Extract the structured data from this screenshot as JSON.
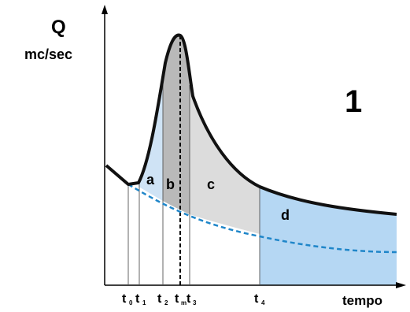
{
  "y_axis": {
    "title": "Q",
    "unit": "mc/sec"
  },
  "x_axis": {
    "title": "tempo"
  },
  "figure_number": "1",
  "areas": [
    {
      "id": "a",
      "label": "a",
      "color": "#cfe3f5"
    },
    {
      "id": "b",
      "label": "b",
      "color": "#b9b9b9"
    },
    {
      "id": "c",
      "label": "c",
      "color": "#dcdcdc"
    },
    {
      "id": "d",
      "label": "d",
      "color": "#b5d7f3"
    }
  ],
  "time_marks": [
    {
      "id": "t0",
      "main": "t",
      "sub": "0"
    },
    {
      "id": "t1",
      "main": "t",
      "sub": "1"
    },
    {
      "id": "t2",
      "main": "t",
      "sub": "2"
    },
    {
      "id": "tm",
      "main": "t",
      "sub": "m"
    },
    {
      "id": "t3",
      "main": "t",
      "sub": "3"
    },
    {
      "id": "t4",
      "main": "t",
      "sub": "4"
    }
  ],
  "colors": {
    "hydrograph": "#111111",
    "baseflow": "#1f86c9",
    "axis": "#000000"
  }
}
